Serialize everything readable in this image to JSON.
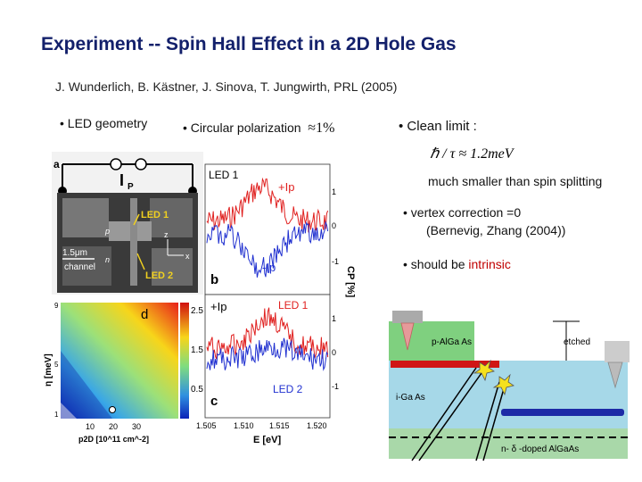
{
  "title": "Experiment  -- Spin Hall Effect in a 2D Hole Gas",
  "reference": "J. Wunderlich, B. Kästner, J. Sinova, T. Jungwirth, PRL (2005)",
  "bullets": {
    "led_geometry": "LED geometry",
    "circular_polarization": "Circular polarization",
    "circular_polarization_value": "≈1%",
    "clean_limit": "Clean limit :",
    "clean_limit_formula": "ℏ / τ ≈ 1.2meV",
    "spin_splitting": "much smaller than spin splitting",
    "vertex_correction": "vertex correction =0",
    "vertex_citation": "(Bernevig, Zhang (2004))",
    "intrinsic_prefix": "should be",
    "intrinsic_word": "intrinsic"
  },
  "device_image": {
    "panel_label": "a",
    "current_label": "I",
    "current_sub": "P",
    "led1": "LED 1",
    "led2": "LED 2",
    "scale": "1.5μm",
    "channel": "channel",
    "axis_x": "x",
    "axis_z": "z",
    "axis_p": "p",
    "axis_n": "n"
  },
  "heatmap": {
    "panel_label": "d",
    "ylabel": "η [meV]",
    "xlabel": "p2D [10^11 cm^-2]",
    "yticks": [
      "9",
      "5",
      "1"
    ],
    "xticks": [
      "10",
      "20",
      "30"
    ],
    "colorbar_ticks": [
      "2.5",
      "1.5",
      "0.5"
    ]
  },
  "spectra": {
    "panel_b": "b",
    "panel_c": "c",
    "top_led": "LED 1",
    "bottom_led": "LED 2",
    "plus_ip": "+Ip",
    "minus_ip": "-Ip",
    "y_axis_label": "CP [%]",
    "right_ticks_top": [
      "1",
      "0",
      "-1"
    ],
    "right_ticks_bottom": [
      "1",
      "0",
      "-1"
    ],
    "xlabel": "E [eV]",
    "xticks": [
      "1.505",
      "1.510",
      "1.515",
      "1.520"
    ]
  },
  "heterostructure": {
    "p_layer": "p-AlGa As",
    "i_layer": "i-Ga As",
    "n_layer": "n- δ -doped AlGaAs",
    "etched": "etched"
  },
  "colors": {
    "title": "#13206b",
    "emphasis": "#c00000",
    "series_plus": "#e0201f",
    "series_minus": "#2030d0"
  }
}
